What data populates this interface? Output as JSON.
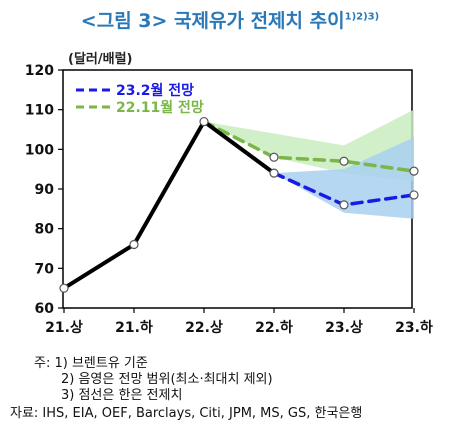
{
  "header": {
    "title": "<그림 3> 국제유가 전제치 추이",
    "title_sup": "1)2)3)"
  },
  "chart_data": {
    "type": "line",
    "unit": "(달러/배럴)",
    "categories": [
      "21.상",
      "21.하",
      "22.상",
      "22.하",
      "23.상",
      "23.하"
    ],
    "ylim": [
      60,
      120
    ],
    "yticks": [
      60,
      70,
      80,
      90,
      100,
      110,
      120
    ],
    "grid": false,
    "legend_position": "top-left",
    "series": [
      {
        "role": "actual",
        "values": [
          65,
          76,
          107,
          94,
          null,
          null
        ],
        "color": "#000000",
        "style": "solid"
      },
      {
        "name": "23.2월 전망",
        "role": "forecast",
        "values": [
          null,
          null,
          null,
          94,
          86,
          88.5
        ],
        "color": "#1a1ae6",
        "style": "dashed"
      },
      {
        "name": "22.11월 전망",
        "role": "forecast",
        "values": [
          null,
          null,
          107,
          98,
          97,
          94.5
        ],
        "color": "#7ab648",
        "style": "dashed"
      }
    ],
    "ranges": [
      {
        "series": "22.11월 전망",
        "lower": [
          null,
          null,
          107,
          98,
          94,
          92
        ],
        "upper": [
          null,
          null,
          107,
          104,
          101,
          110
        ],
        "color": "#c9ecc0"
      },
      {
        "series": "23.2월 전망",
        "lower": [
          null,
          null,
          null,
          94,
          84,
          82.5
        ],
        "upper": [
          null,
          null,
          null,
          94,
          95,
          103
        ],
        "color": "#a9d0f0"
      }
    ]
  },
  "notes": [
    "주: 1) 브렌트유 기준",
    "2) 음영은 전망 범위(최소·최대치 제외)",
    "3) 점선은 한은 전제치",
    "자료: IHS, EIA, OEF, Barclays, Citi, JPM, MS, GS, 한국은행"
  ]
}
